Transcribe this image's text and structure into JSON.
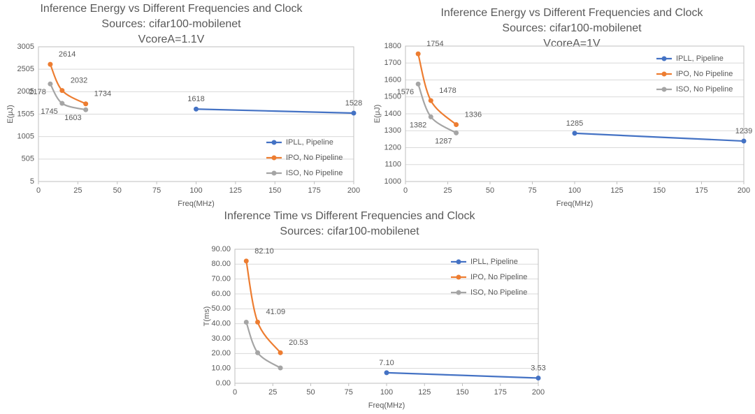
{
  "chart_data": [
    {
      "type": "line",
      "title": "Inference Energy vs Different Frequencies and Clock",
      "subtitles": [
        "Sources: cifar100-mobilenet",
        "VcoreA=1.1V"
      ],
      "x_label": "Freq(MHz)",
      "y_label": "E(μJ)",
      "xlim": [
        0,
        200
      ],
      "xticks": [
        0,
        25,
        50,
        75,
        100,
        125,
        150,
        175,
        200
      ],
      "ylim": [
        5,
        3005
      ],
      "yticks": [
        5,
        505,
        1005,
        1505,
        2005,
        2505,
        3005
      ],
      "grid": true,
      "legend": "lower right",
      "series": [
        {
          "name": "IPLL, Pipeline",
          "color": "#4472c4",
          "x": [
            100,
            200
          ],
          "values": [
            1618,
            1528
          ],
          "data_labels": true
        },
        {
          "name": "IPO, No Pipeline",
          "color": "#ed7d31",
          "x": [
            7.5,
            15,
            30
          ],
          "values": [
            2614,
            2032,
            1734
          ],
          "data_labels": true
        },
        {
          "name": "ISO, No Pipeline",
          "color": "#a5a5a5",
          "x": [
            7.5,
            15,
            30
          ],
          "values": [
            2178,
            1745,
            1603
          ],
          "data_labels": true
        }
      ]
    },
    {
      "type": "line",
      "title": "Inference Energy vs Different Frequencies and Clock",
      "subtitles": [
        "Sources: cifar100-mobilenet",
        "VcoreA=1V"
      ],
      "x_label": "Freq(MHz)",
      "y_label": "E(μJ)",
      "xlim": [
        0,
        200
      ],
      "xticks": [
        0,
        25,
        50,
        75,
        100,
        125,
        150,
        175,
        200
      ],
      "ylim": [
        1000,
        1800
      ],
      "yticks": [
        1000,
        1100,
        1200,
        1300,
        1400,
        1500,
        1600,
        1700,
        1800
      ],
      "grid": true,
      "legend": "upper right",
      "series": [
        {
          "name": "IPLL, Pipeline",
          "color": "#4472c4",
          "x": [
            100,
            200
          ],
          "values": [
            1285,
            1239
          ],
          "data_labels": true
        },
        {
          "name": "IPO, No Pipeline",
          "color": "#ed7d31",
          "x": [
            7.5,
            15,
            30
          ],
          "values": [
            1754,
            1478,
            1336
          ],
          "data_labels": true
        },
        {
          "name": "ISO, No Pipeline",
          "color": "#a5a5a5",
          "x": [
            7.5,
            15,
            30
          ],
          "values": [
            1576,
            1382,
            1287
          ],
          "data_labels": true
        }
      ]
    },
    {
      "type": "line",
      "title": "Inference Time vs Different Frequencies and Clock",
      "subtitles": [
        "Sources: cifar100-mobilenet"
      ],
      "x_label": "Freq(MHz)",
      "y_label": "T(ms)",
      "xlim": [
        0,
        200
      ],
      "xticks": [
        0,
        25,
        50,
        75,
        100,
        125,
        150,
        175,
        200
      ],
      "ylim": [
        0,
        90
      ],
      "yticks": [
        {
          "value": 0,
          "label": "0.00"
        },
        {
          "value": 10,
          "label": "10.00"
        },
        {
          "value": 20,
          "label": "20.00"
        },
        {
          "value": 30,
          "label": "30.00"
        },
        {
          "value": 40,
          "label": "40.00"
        },
        {
          "value": 50,
          "label": "50.00"
        },
        {
          "value": 60,
          "label": "60.00"
        },
        {
          "value": 70,
          "label": "70.00"
        },
        {
          "value": 80,
          "label": "80.00"
        },
        {
          "value": 90,
          "label": "90.00"
        }
      ],
      "grid": true,
      "legend": "upper right",
      "series": [
        {
          "name": "IPLL, Pipeline",
          "color": "#4472c4",
          "x": [
            100,
            200
          ],
          "values": [
            7.1,
            3.53
          ],
          "value_labels": [
            "7.10",
            "3.53"
          ],
          "data_labels": true
        },
        {
          "name": "IPO, No Pipeline",
          "color": "#ed7d31",
          "x": [
            7.5,
            15,
            30
          ],
          "values": [
            82.1,
            41.09,
            20.53
          ],
          "value_labels": [
            "82.10",
            "41.09",
            "20.53"
          ],
          "data_labels": true
        },
        {
          "name": "ISO, No Pipeline",
          "color": "#a5a5a5",
          "x": [
            7.5,
            15,
            30
          ],
          "values": [
            41,
            20.5,
            10.3
          ],
          "data_labels": false
        }
      ]
    }
  ]
}
